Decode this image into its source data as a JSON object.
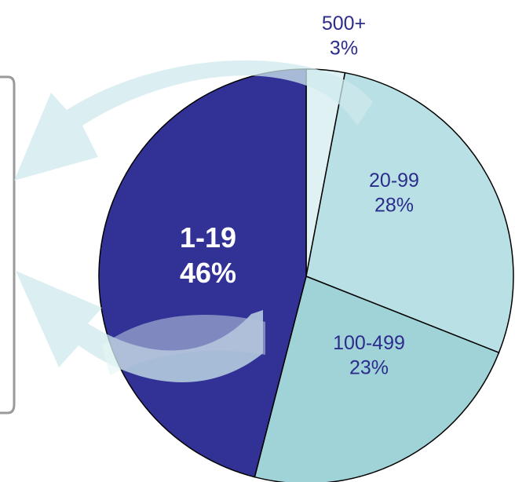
{
  "chart_data": {
    "type": "pie",
    "slices": [
      {
        "label": "500+",
        "value": 3,
        "percent_label": "3%",
        "color": "#dff1f3"
      },
      {
        "label": "20-99",
        "value": 28,
        "percent_label": "28%",
        "color": "#b9e0e4"
      },
      {
        "label": "100-499",
        "value": 23,
        "percent_label": "23%",
        "color": "#9fd3d8"
      },
      {
        "label": "1-19",
        "value": 46,
        "percent_label": "46%",
        "color": "#323296"
      }
    ],
    "label_colors": {
      "dark_slice": "#ffffff",
      "light_slice": "#2c2c8c"
    },
    "callout_box_border": "#9a9a9a",
    "arrow_color": "#cfeaed"
  }
}
